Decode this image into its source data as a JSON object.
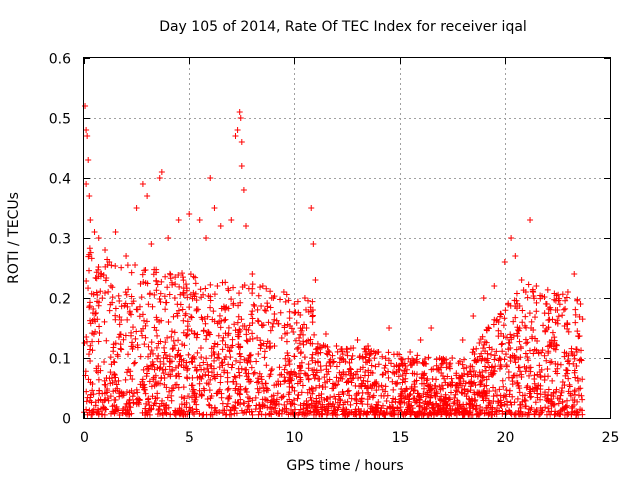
{
  "chart_data": {
    "type": "scatter",
    "title": "Day 105 of 2014, Rate Of TEC Index for receiver iqal",
    "xlabel": "GPS time / hours",
    "ylabel": "ROTI / TECUs",
    "xlim": [
      0,
      25
    ],
    "ylim": [
      0,
      0.6
    ],
    "xticks": [
      0,
      5,
      10,
      15,
      20,
      25
    ],
    "yticks": [
      0,
      0.1,
      0.2,
      0.3,
      0.4,
      0.5,
      0.6
    ],
    "xtick_labels": [
      "0",
      "5",
      "10",
      "15",
      "20",
      "25"
    ],
    "ytick_labels": [
      "0",
      "0.1",
      "0.2",
      "0.3",
      "0.4",
      "0.5",
      "0.6"
    ],
    "grid": true,
    "marker": "+",
    "color": "#ff0000",
    "series": [
      {
        "name": "ROTI",
        "points": [
          [
            0.05,
            0.52
          ],
          [
            0.1,
            0.48
          ],
          [
            0.15,
            0.47
          ],
          [
            0.2,
            0.43
          ],
          [
            0.1,
            0.39
          ],
          [
            0.25,
            0.37
          ],
          [
            0.3,
            0.33
          ],
          [
            0.5,
            0.31
          ],
          [
            0.7,
            0.3
          ],
          [
            1.0,
            0.28
          ],
          [
            1.2,
            0.26
          ],
          [
            1.5,
            0.31
          ],
          [
            2.0,
            0.27
          ],
          [
            2.5,
            0.35
          ],
          [
            2.8,
            0.39
          ],
          [
            3.0,
            0.37
          ],
          [
            3.2,
            0.29
          ],
          [
            3.6,
            0.4
          ],
          [
            3.7,
            0.41
          ],
          [
            4.0,
            0.3
          ],
          [
            4.5,
            0.33
          ],
          [
            5.0,
            0.34
          ],
          [
            5.5,
            0.33
          ],
          [
            5.8,
            0.3
          ],
          [
            6.0,
            0.4
          ],
          [
            6.2,
            0.35
          ],
          [
            6.5,
            0.32
          ],
          [
            7.0,
            0.33
          ],
          [
            7.2,
            0.47
          ],
          [
            7.3,
            0.48
          ],
          [
            7.4,
            0.51
          ],
          [
            7.45,
            0.5
          ],
          [
            7.5,
            0.46
          ],
          [
            7.5,
            0.42
          ],
          [
            7.6,
            0.38
          ],
          [
            7.7,
            0.32
          ],
          [
            8.0,
            0.24
          ],
          [
            8.5,
            0.22
          ],
          [
            9.0,
            0.2
          ],
          [
            9.5,
            0.21
          ],
          [
            10.0,
            0.19
          ],
          [
            10.5,
            0.2
          ],
          [
            10.8,
            0.35
          ],
          [
            10.9,
            0.29
          ],
          [
            11.0,
            0.23
          ],
          [
            11.5,
            0.14
          ],
          [
            12.0,
            0.12
          ],
          [
            12.5,
            0.11
          ],
          [
            13.0,
            0.13
          ],
          [
            13.5,
            0.12
          ],
          [
            14.0,
            0.11
          ],
          [
            14.5,
            0.15
          ],
          [
            15.0,
            0.08
          ],
          [
            15.5,
            0.11
          ],
          [
            16.0,
            0.13
          ],
          [
            16.5,
            0.15
          ],
          [
            17.0,
            0.09
          ],
          [
            17.5,
            0.1
          ],
          [
            18.0,
            0.13
          ],
          [
            18.5,
            0.17
          ],
          [
            19.0,
            0.2
          ],
          [
            19.5,
            0.22
          ],
          [
            20.0,
            0.26
          ],
          [
            20.3,
            0.3
          ],
          [
            20.5,
            0.27
          ],
          [
            20.8,
            0.23
          ],
          [
            21.0,
            0.21
          ],
          [
            21.2,
            0.33
          ],
          [
            21.5,
            0.22
          ],
          [
            22.0,
            0.19
          ],
          [
            22.5,
            0.18
          ],
          [
            23.0,
            0.21
          ],
          [
            23.3,
            0.24
          ],
          [
            23.6,
            0.19
          ]
        ]
      }
    ]
  }
}
